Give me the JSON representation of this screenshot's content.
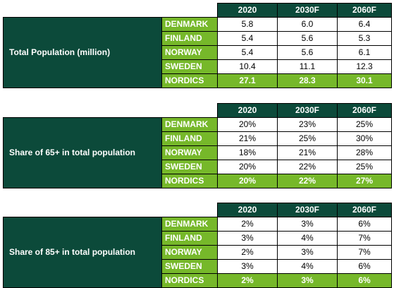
{
  "years": [
    "2020",
    "2030F",
    "2060F"
  ],
  "tables": [
    {
      "metric": "Total Population (million)",
      "rows": [
        {
          "country": "DENMARK",
          "values": [
            "5.8",
            "6.0",
            "6.4"
          ]
        },
        {
          "country": "FINLAND",
          "values": [
            "5.4",
            "5.6",
            "5.3"
          ]
        },
        {
          "country": "NORWAY",
          "values": [
            "5.4",
            "5.6",
            "6.1"
          ]
        },
        {
          "country": "SWEDEN",
          "values": [
            "10.4",
            "11.1",
            "12.3"
          ]
        },
        {
          "country": "NORDICS",
          "values": [
            "27.1",
            "28.3",
            "30.1"
          ]
        }
      ]
    },
    {
      "metric": "Share of 65+ in total population",
      "rows": [
        {
          "country": "DENMARK",
          "values": [
            "20%",
            "23%",
            "25%"
          ]
        },
        {
          "country": "FINLAND",
          "values": [
            "21%",
            "25%",
            "30%"
          ]
        },
        {
          "country": "NORWAY",
          "values": [
            "18%",
            "21%",
            "28%"
          ]
        },
        {
          "country": "SWEDEN",
          "values": [
            "20%",
            "22%",
            "25%"
          ]
        },
        {
          "country": "NORDICS",
          "values": [
            "20%",
            "22%",
            "27%"
          ]
        }
      ]
    },
    {
      "metric": "Share of 85+ in total population",
      "rows": [
        {
          "country": "DENMARK",
          "values": [
            "2%",
            "3%",
            "6%"
          ]
        },
        {
          "country": "FINLAND",
          "values": [
            "3%",
            "4%",
            "7%"
          ]
        },
        {
          "country": "NORWAY",
          "values": [
            "2%",
            "3%",
            "7%"
          ]
        },
        {
          "country": "SWEDEN",
          "values": [
            "3%",
            "4%",
            "6%"
          ]
        },
        {
          "country": "NORDICS",
          "values": [
            "2%",
            "3%",
            "6%"
          ]
        }
      ]
    }
  ],
  "colors": {
    "dark_green": "#0c4a3a",
    "light_green": "#76b82a"
  }
}
